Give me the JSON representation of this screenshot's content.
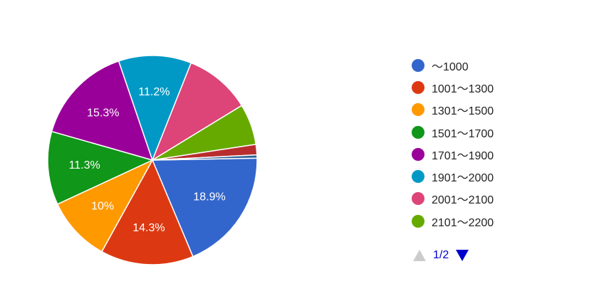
{
  "chart_data": {
    "type": "pie",
    "slices": [
      {
        "label": "〜1000",
        "value": 18.9,
        "display": "18.9%",
        "color": "#3366cc"
      },
      {
        "label": "1001〜1300",
        "value": 14.3,
        "display": "14.3%",
        "color": "#dc3912"
      },
      {
        "label": "1301〜1500",
        "value": 10.0,
        "display": "10%",
        "color": "#ff9900"
      },
      {
        "label": "1501〜1700",
        "value": 11.3,
        "display": "11.3%",
        "color": "#109618"
      },
      {
        "label": "1701〜1900",
        "value": 15.3,
        "display": "15.3%",
        "color": "#990099"
      },
      {
        "label": "1901〜2000",
        "value": 11.2,
        "display": "11.2%",
        "color": "#0099c6"
      },
      {
        "label": "2001〜2100",
        "value": 10.2,
        "display": "",
        "color": "#dd4477"
      },
      {
        "label": "2101〜2200",
        "value": 6.3,
        "display": "",
        "color": "#66aa00"
      },
      {
        "label": "",
        "value": 1.6,
        "display": "",
        "color": "#b82e2e"
      },
      {
        "label": "",
        "value": 0.5,
        "display": "",
        "color": "#316395"
      }
    ],
    "legend_position": "right"
  },
  "legend": {
    "items": [
      "〜1000",
      "1001〜1300",
      "1301〜1500",
      "1501〜1700",
      "1701〜1900",
      "1901〜2000",
      "2001〜2100",
      "2101〜2200"
    ]
  },
  "pager": {
    "text": "1/2"
  }
}
